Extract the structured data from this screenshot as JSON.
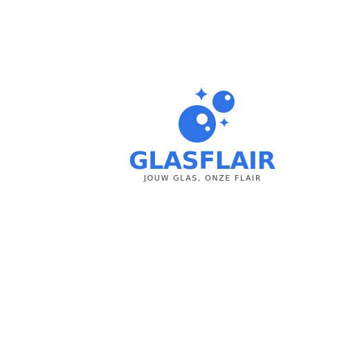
{
  "brand": {
    "name": "GLASFLAIR",
    "tagline": "JOUW GLAS, ONZE FLAIR",
    "logo_icon": "bubbles-sparkle-icon"
  },
  "colors": {
    "brand_blue": "#2f74e6",
    "tagline_gray": "#444444",
    "background": "#ffffff"
  }
}
